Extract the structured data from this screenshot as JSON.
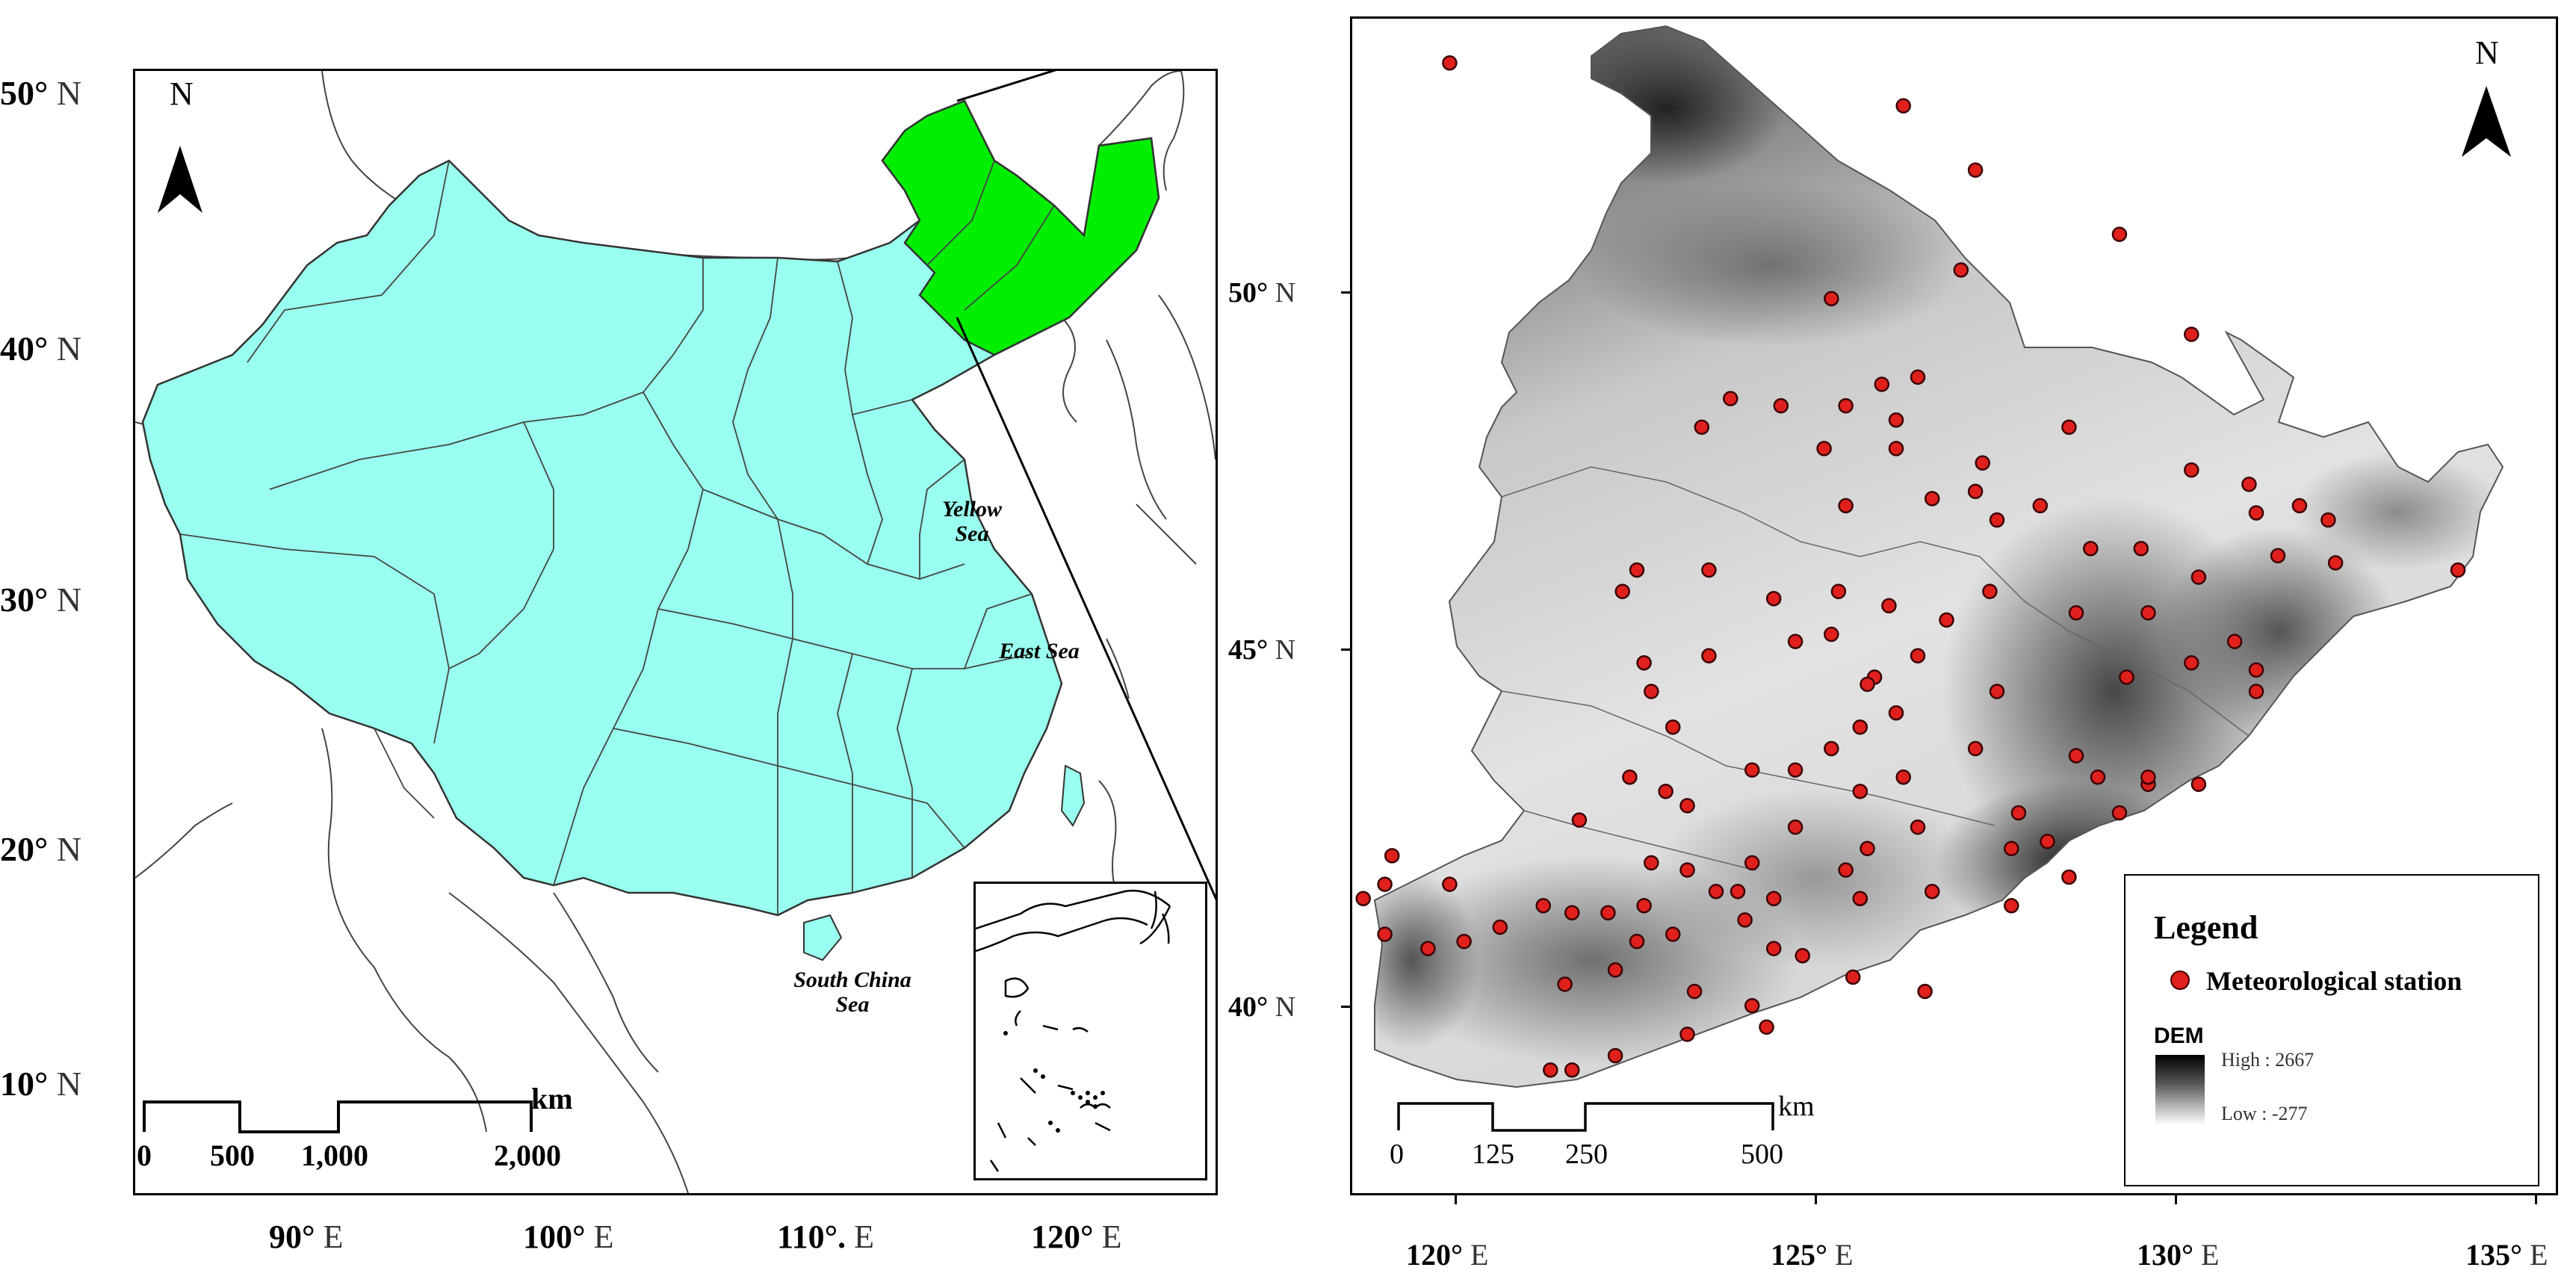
{
  "left_map": {
    "north_label": "N",
    "lat_labels": [
      {
        "deg": "50°",
        "hem": "N"
      },
      {
        "deg": "40°",
        "hem": "N"
      },
      {
        "deg": "30°",
        "hem": "N"
      },
      {
        "deg": "20°",
        "hem": "N"
      },
      {
        "deg": "10°",
        "hem": "N"
      }
    ],
    "lon_labels": [
      {
        "deg": "90°",
        "hem": "E"
      },
      {
        "deg": "100°",
        "hem": "E"
      },
      {
        "deg": "110°.",
        "hem": "E"
      },
      {
        "deg": "120°",
        "hem": "E"
      }
    ],
    "sea_labels": {
      "yellow_sea": "Yellow Sea",
      "east_sea": "East Sea",
      "south_china_sea": "South China Sea"
    },
    "scale_bar": {
      "unit": "km",
      "ticks": [
        "0",
        "500",
        "1,000",
        "2,000"
      ]
    },
    "colors": {
      "china_fill": "#99ffee",
      "study_area_fill": "#00ee00",
      "border": "#333333"
    }
  },
  "right_map": {
    "north_label": "N",
    "lat_labels": [
      {
        "deg": "50°",
        "hem": "N"
      },
      {
        "deg": "45°",
        "hem": "N"
      },
      {
        "deg": "40°",
        "hem": "N"
      }
    ],
    "lon_labels": [
      {
        "deg": "120°",
        "hem": "E"
      },
      {
        "deg": "125°",
        "hem": "E"
      },
      {
        "deg": "130°",
        "hem": "E"
      },
      {
        "deg": "135°",
        "hem": "E"
      }
    ],
    "scale_bar": {
      "unit": "km",
      "ticks": [
        "0",
        "125",
        "250",
        "500"
      ]
    },
    "legend": {
      "title": "Legend",
      "station_label": "Meteorological station",
      "dem_label": "DEM",
      "high_label": "High : 2667",
      "low_label": "Low : -277"
    },
    "colors": {
      "station_fill": "#e0201c",
      "station_stroke": "#3b0000"
    },
    "stations": [
      [
        119.9,
        53.0
      ],
      [
        126.2,
        52.4
      ],
      [
        127.2,
        51.5
      ],
      [
        129.2,
        50.6
      ],
      [
        127.0,
        50.1
      ],
      [
        125.2,
        49.7
      ],
      [
        130.2,
        49.2
      ],
      [
        125.9,
        48.5
      ],
      [
        126.4,
        48.6
      ],
      [
        125.4,
        48.2
      ],
      [
        124.5,
        48.2
      ],
      [
        126.1,
        48.0
      ],
      [
        128.5,
        47.9
      ],
      [
        123.8,
        48.3
      ],
      [
        123.4,
        47.9
      ],
      [
        125.1,
        47.6
      ],
      [
        126.1,
        47.6
      ],
      [
        127.3,
        47.4
      ],
      [
        130.2,
        47.3
      ],
      [
        131.0,
        47.1
      ],
      [
        131.7,
        46.8
      ],
      [
        125.4,
        46.8
      ],
      [
        126.6,
        46.9
      ],
      [
        127.5,
        46.6
      ],
      [
        128.1,
        46.8
      ],
      [
        127.2,
        47.0
      ],
      [
        129.5,
        46.2
      ],
      [
        128.8,
        46.2
      ],
      [
        131.1,
        46.7
      ],
      [
        132.1,
        46.6
      ],
      [
        133.9,
        45.9
      ],
      [
        123.5,
        45.9
      ],
      [
        122.5,
        45.9
      ],
      [
        122.3,
        45.6
      ],
      [
        124.4,
        45.5
      ],
      [
        125.3,
        45.6
      ],
      [
        126.8,
        45.2
      ],
      [
        127.4,
        45.6
      ],
      [
        128.6,
        45.3
      ],
      [
        129.6,
        45.3
      ],
      [
        130.3,
        45.8
      ],
      [
        131.4,
        46.1
      ],
      [
        132.2,
        46.0
      ],
      [
        130.8,
        44.9
      ],
      [
        130.2,
        44.6
      ],
      [
        131.1,
        44.2
      ],
      [
        131.1,
        44.5
      ],
      [
        129.3,
        44.4
      ],
      [
        126.0,
        45.4
      ],
      [
        125.2,
        45.0
      ],
      [
        124.7,
        44.9
      ],
      [
        126.4,
        44.7
      ],
      [
        125.8,
        44.4
      ],
      [
        125.7,
        44.3
      ],
      [
        123.5,
        44.7
      ],
      [
        122.6,
        44.6
      ],
      [
        122.7,
        44.2
      ],
      [
        123.0,
        43.7
      ],
      [
        124.1,
        43.1
      ],
      [
        124.7,
        43.1
      ],
      [
        125.2,
        43.4
      ],
      [
        125.6,
        43.7
      ],
      [
        126.1,
        43.9
      ],
      [
        127.5,
        44.2
      ],
      [
        127.2,
        43.4
      ],
      [
        126.2,
        43.0
      ],
      [
        125.6,
        42.8
      ],
      [
        124.7,
        42.3
      ],
      [
        125.7,
        42.0
      ],
      [
        126.4,
        42.3
      ],
      [
        127.8,
        42.5
      ],
      [
        127.7,
        42.0
      ],
      [
        128.5,
        41.6
      ],
      [
        128.2,
        42.1
      ],
      [
        129.2,
        42.5
      ],
      [
        129.6,
        42.9
      ],
      [
        129.6,
        43.0
      ],
      [
        130.3,
        42.9
      ],
      [
        128.9,
        43.0
      ],
      [
        128.6,
        43.3
      ],
      [
        122.4,
        43.0
      ],
      [
        122.9,
        42.8
      ],
      [
        123.2,
        42.6
      ],
      [
        121.7,
        42.4
      ],
      [
        122.7,
        41.8
      ],
      [
        123.2,
        41.7
      ],
      [
        124.1,
        41.8
      ],
      [
        123.6,
        41.4
      ],
      [
        123.9,
        41.4
      ],
      [
        124.4,
        41.3
      ],
      [
        125.4,
        41.7
      ],
      [
        125.6,
        41.3
      ],
      [
        126.6,
        41.4
      ],
      [
        127.7,
        41.2
      ],
      [
        121.2,
        41.2
      ],
      [
        121.6,
        41.1
      ],
      [
        122.1,
        41.1
      ],
      [
        122.6,
        41.2
      ],
      [
        122.5,
        40.7
      ],
      [
        123.0,
        40.8
      ],
      [
        124.0,
        41.0
      ],
      [
        124.4,
        40.6
      ],
      [
        124.8,
        40.5
      ],
      [
        125.5,
        40.2
      ],
      [
        126.5,
        40.0
      ],
      [
        119.1,
        41.9
      ],
      [
        119.0,
        41.5
      ],
      [
        118.7,
        41.3
      ],
      [
        119.9,
        41.5
      ],
      [
        119.0,
        40.8
      ],
      [
        119.6,
        40.6
      ],
      [
        120.1,
        40.7
      ],
      [
        120.6,
        40.9
      ],
      [
        121.5,
        40.1
      ],
      [
        122.2,
        40.3
      ],
      [
        123.3,
        40.0
      ],
      [
        124.1,
        39.8
      ],
      [
        124.3,
        39.5
      ],
      [
        123.2,
        39.4
      ],
      [
        122.2,
        39.1
      ],
      [
        121.6,
        38.9
      ],
      [
        121.3,
        38.9
      ]
    ]
  }
}
